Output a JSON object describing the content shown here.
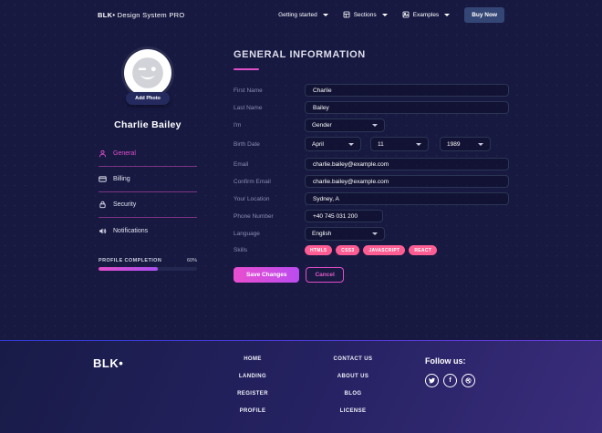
{
  "navbar": {
    "brand_bold": "BLK•",
    "brand_rest": " Design System PRO",
    "getting_started": "Getting started",
    "sections": "Sections",
    "examples": "Examples",
    "buy_now": "Buy Now"
  },
  "sidebar": {
    "add_photo": "Add Photo",
    "name": "Charlie Bailey",
    "menu": [
      {
        "label": "General"
      },
      {
        "label": "Billing"
      },
      {
        "label": "Security"
      },
      {
        "label": "Notifications"
      }
    ],
    "profile_completion": {
      "label": "PROFILE COMPLETION",
      "value": "60%",
      "percent": 60
    }
  },
  "form": {
    "title": "GENERAL INFORMATION",
    "first_name": {
      "label": "First Name",
      "value": "Charlie"
    },
    "last_name": {
      "label": "Last Name",
      "value": "Bailey"
    },
    "gender": {
      "label": "I'm",
      "value": "Gender"
    },
    "birth_date": {
      "label": "Birth Date",
      "month": "April",
      "day": "11",
      "year": "1989"
    },
    "email": {
      "label": "Email",
      "value": "charlie.bailey@example.com"
    },
    "confirm_email": {
      "label": "Confirm Email",
      "value": "charlie.bailey@example.com"
    },
    "location": {
      "label": "Your Location",
      "value": "Sydney, A"
    },
    "phone": {
      "label": "Phone Number",
      "value": "+40 745 031 200"
    },
    "language": {
      "label": "Language",
      "value": "English"
    },
    "skills": {
      "label": "Skills",
      "tags": [
        "HTML5",
        "CSS3",
        "JAVASCRIPT",
        "REACT"
      ]
    },
    "save": "Save Changes",
    "cancel": "Cancel"
  },
  "footer": {
    "brand": "BLK•",
    "links_col1": [
      "HOME",
      "LANDING",
      "REGISTER",
      "PROFILE"
    ],
    "links_col2": [
      "CONTACT US",
      "ABOUT US",
      "BLOG",
      "LICENSE"
    ],
    "follow": "Follow us:",
    "facebook_glyph": "f"
  },
  "colors": {
    "background": "#171941",
    "primary_pink": "#e14eca",
    "primary_purple": "#ba54f5",
    "tag_pink": "#fd5d93",
    "buy_now_blue": "#344675",
    "input_border": "#2b3553"
  }
}
